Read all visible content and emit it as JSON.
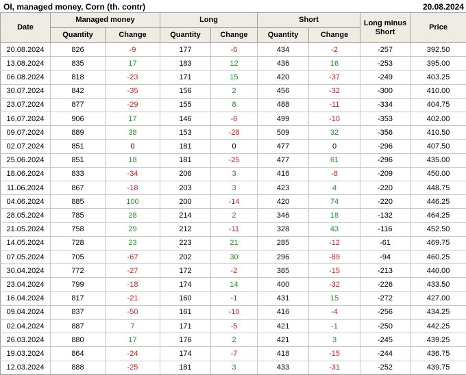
{
  "title": "OI, managed money, Corn (th. contr)",
  "report_date": "20.08.2024",
  "colors": {
    "negative": "#cc2020",
    "positive": "#1e9320",
    "header_bg": "#efece4",
    "grid_outer": "#9e9e9e",
    "grid_inner": "#c6c6c6"
  },
  "header": {
    "date": "Date",
    "managed_money": "Managed money",
    "long": "Long",
    "short": "Short",
    "quantity": "Quantity",
    "change": "Change",
    "long_minus_short": "Long minus Short",
    "price": "Price"
  },
  "chart_data": {
    "type": "table",
    "columns": [
      "Date",
      "Managed money Quantity",
      "Managed money Change",
      "Long Quantity",
      "Long Change",
      "Short Quantity",
      "Short Change",
      "Long minus Short",
      "Price"
    ],
    "rows": [
      [
        "20.08.2024",
        826,
        -9,
        177,
        -6,
        434,
        -2,
        -257,
        "392.50"
      ],
      [
        "13.08.2024",
        835,
        17,
        183,
        12,
        436,
        16,
        -253,
        "395.00"
      ],
      [
        "06.08.2024",
        818,
        -23,
        171,
        15,
        420,
        -37,
        -249,
        "403.25"
      ],
      [
        "30.07.2024",
        842,
        -35,
        156,
        2,
        456,
        -32,
        -300,
        "410.00"
      ],
      [
        "23.07.2024",
        877,
        -29,
        155,
        8,
        488,
        -11,
        -334,
        "404.75"
      ],
      [
        "16.07.2024",
        906,
        17,
        146,
        -6,
        499,
        -10,
        -353,
        "402.00"
      ],
      [
        "09.07.2024",
        889,
        38,
        153,
        -28,
        509,
        32,
        -356,
        "410.50"
      ],
      [
        "02.07.2024",
        851,
        0,
        181,
        0,
        477,
        0,
        -296,
        "407.50"
      ],
      [
        "25.06.2024",
        851,
        18,
        181,
        -25,
        477,
        61,
        -296,
        "435.00"
      ],
      [
        "18.06.2024",
        833,
        -34,
        206,
        3,
        416,
        -8,
        -209,
        "450.00"
      ],
      [
        "11.06.2024",
        867,
        -18,
        203,
        3,
        423,
        4,
        -220,
        "448.75"
      ],
      [
        "04.06.2024",
        885,
        100,
        200,
        -14,
        420,
        74,
        -220,
        "446.25"
      ],
      [
        "28.05.2024",
        785,
        28,
        214,
        2,
        346,
        18,
        -132,
        "464.25"
      ],
      [
        "21.05.2024",
        758,
        29,
        212,
        -11,
        328,
        43,
        -116,
        "452.50"
      ],
      [
        "14.05.2024",
        728,
        23,
        223,
        21,
        285,
        -12,
        -61,
        "469.75"
      ],
      [
        "07.05.2024",
        705,
        -67,
        202,
        30,
        296,
        -89,
        -94,
        "460.25"
      ],
      [
        "30.04.2024",
        772,
        -27,
        172,
        -2,
        385,
        -15,
        -213,
        "440.00"
      ],
      [
        "23.04.2024",
        799,
        -18,
        174,
        14,
        400,
        -32,
        -226,
        "433.50"
      ],
      [
        "16.04.2024",
        817,
        -21,
        160,
        -1,
        431,
        15,
        -272,
        "427.00"
      ],
      [
        "09.04.2024",
        837,
        -50,
        161,
        -10,
        416,
        -4,
        -256,
        "434.25"
      ],
      [
        "02.04.2024",
        887,
        7,
        171,
        -5,
        421,
        -1,
        -250,
        "442.25"
      ],
      [
        "26.03.2024",
        880,
        17,
        176,
        2,
        421,
        3,
        -245,
        "439.25"
      ],
      [
        "19.03.2024",
        864,
        -24,
        174,
        -7,
        418,
        -15,
        -244,
        "436.75"
      ],
      [
        "12.03.2024",
        888,
        -25,
        181,
        3,
        433,
        -31,
        -252,
        "439.75"
      ]
    ]
  }
}
